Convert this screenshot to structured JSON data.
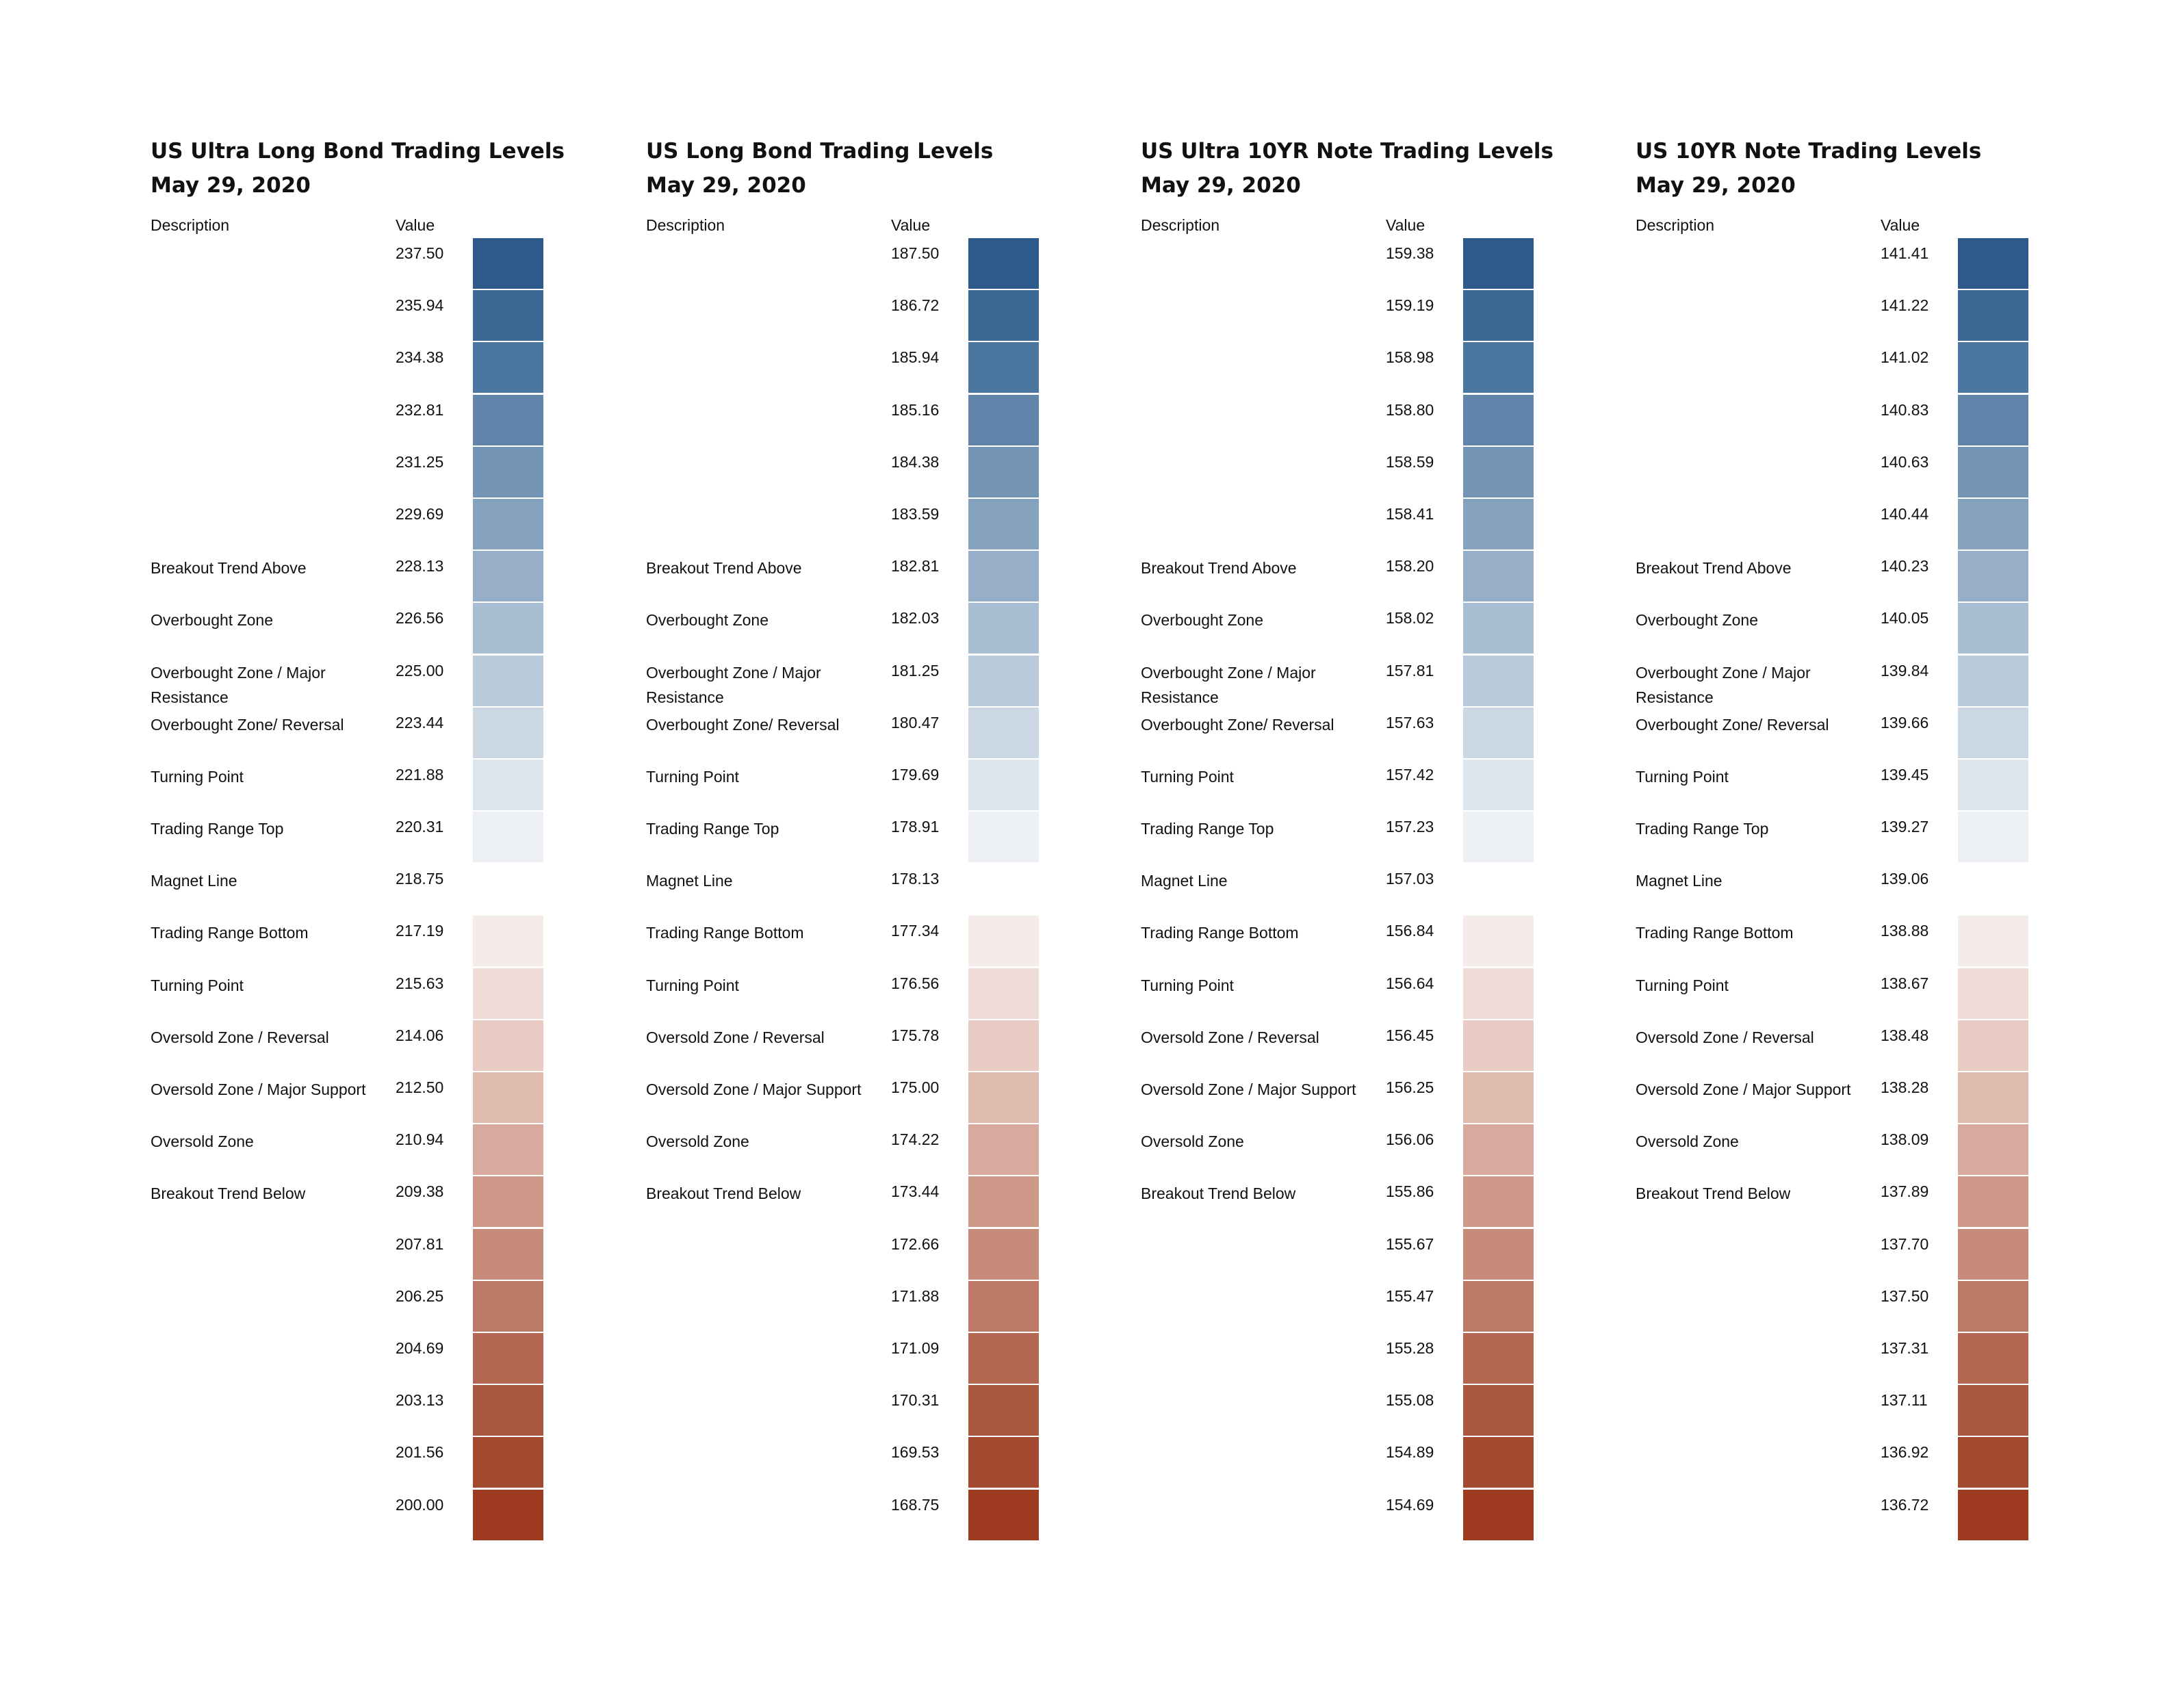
{
  "headers": {
    "description": "Description",
    "value": "Value"
  },
  "colors": [
    "#2d5a8b",
    "#3b6895",
    "#4b76a0",
    "#6084aa",
    "#7394b4",
    "#85a3bf",
    "#97aec8",
    "#a9bed3",
    "#b9cbdb",
    "#cbd8e4",
    "#dde5ed",
    "#ecf0f5",
    "#ffffff",
    "#f5ece9",
    "#efdcd7",
    "#e8ccc4",
    "#e0bbb0",
    "#d7aa9d",
    "#cf998a",
    "#c68b7a",
    "#bc7966",
    "#b36752",
    "#aa5840",
    "#a3492f",
    "#9d3a20"
  ],
  "descriptions": [
    "",
    "",
    "",
    "",
    "",
    "",
    "Breakout Trend Above",
    "Overbought Zone",
    "Overbought Zone / Major Resistance",
    "Overbought Zone/ Reversal",
    "Turning Point",
    "Trading Range Top",
    "Magnet Line",
    "Trading Range Bottom",
    "Turning Point",
    "Oversold Zone / Reversal",
    "Oversold Zone / Major Support",
    "Oversold Zone",
    "Breakout Trend Below",
    "",
    "",
    "",
    "",
    "",
    ""
  ],
  "panels": [
    {
      "title": "US Ultra Long Bond Trading Levels",
      "date": "May 29, 2020",
      "values": [
        "237.50",
        "235.94",
        "234.38",
        "232.81",
        "231.25",
        "229.69",
        "228.13",
        "226.56",
        "225.00",
        "223.44",
        "221.88",
        "220.31",
        "218.75",
        "217.19",
        "215.63",
        "214.06",
        "212.50",
        "210.94",
        "209.38",
        "207.81",
        "206.25",
        "204.69",
        "203.13",
        "201.56",
        "200.00"
      ]
    },
    {
      "title": "US Long Bond Trading Levels",
      "date": "May 29, 2020",
      "values": [
        "187.50",
        "186.72",
        "185.94",
        "185.16",
        "184.38",
        "183.59",
        "182.81",
        "182.03",
        "181.25",
        "180.47",
        "179.69",
        "178.91",
        "178.13",
        "177.34",
        "176.56",
        "175.78",
        "175.00",
        "174.22",
        "173.44",
        "172.66",
        "171.88",
        "171.09",
        "170.31",
        "169.53",
        "168.75"
      ]
    },
    {
      "title": "US Ultra 10YR Note Trading Levels",
      "date": "May 29, 2020",
      "values": [
        "159.38",
        "159.19",
        "158.98",
        "158.80",
        "158.59",
        "158.41",
        "158.20",
        "158.02",
        "157.81",
        "157.63",
        "157.42",
        "157.23",
        "157.03",
        "156.84",
        "156.64",
        "156.45",
        "156.25",
        "156.06",
        "155.86",
        "155.67",
        "155.47",
        "155.28",
        "155.08",
        "154.89",
        "154.69"
      ]
    },
    {
      "title": "US 10YR Note Trading Levels",
      "date": "May 29, 2020",
      "values": [
        "141.41",
        "141.22",
        "141.02",
        "140.83",
        "140.63",
        "140.44",
        "140.23",
        "140.05",
        "139.84",
        "139.66",
        "139.45",
        "139.27",
        "139.06",
        "138.88",
        "138.67",
        "138.48",
        "138.28",
        "138.09",
        "137.89",
        "137.70",
        "137.50",
        "137.31",
        "137.11",
        "136.92",
        "136.72"
      ]
    }
  ]
}
